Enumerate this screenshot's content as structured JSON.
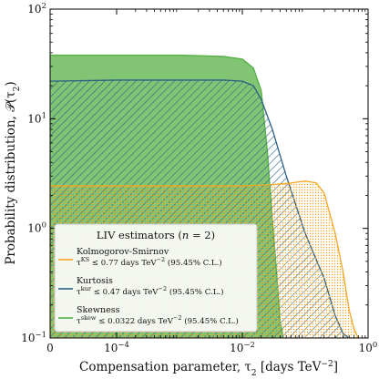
{
  "chart_data": {
    "type": "area",
    "xlabel": "Compensation parameter, τ",
    "xlabel_sub": "2",
    "xlabel_unit": " [days TeV",
    "xlabel_unit_sup": "−2",
    "xlabel_unit_end": "]",
    "ylabel": "Probability distribution, 𝒫(τ",
    "ylabel_sub": "2",
    "ylabel_end": ")",
    "x_scale": "symlog",
    "x_ticks": [
      {
        "value": 0,
        "label": "0",
        "sup": ""
      },
      {
        "value": 0.0001,
        "label": "10",
        "sup": "−4"
      },
      {
        "value": 0.01,
        "label": "10",
        "sup": "−2"
      },
      {
        "value": 1,
        "label": "10",
        "sup": "0"
      }
    ],
    "y_scale": "log",
    "ylim": [
      0.1,
      100
    ],
    "y_ticks": [
      {
        "value": 0.1,
        "label": "10",
        "sup": "−1"
      },
      {
        "value": 1,
        "label": "10",
        "sup": "0"
      },
      {
        "value": 10,
        "label": "10",
        "sup": "1"
      },
      {
        "value": 100,
        "label": "10",
        "sup": "2"
      }
    ],
    "legend": {
      "title": "LIV estimators (",
      "title_var": "n",
      "title_end": " = 2)",
      "placement": "lower-left"
    },
    "series": [
      {
        "name": "Kolmogorov-Smirnov",
        "color": "#f5a623",
        "fill": "dotted-hatch",
        "label_tau": "τ",
        "label_sup": "KS",
        "label_rest": " ≤ 0.77 days TeV",
        "label_unit_sup": "−2",
        "label_cl": " (95.45% C.L.)",
        "x": [
          0,
          0.0001,
          0.001,
          0.01,
          0.03,
          0.06,
          0.1,
          0.15,
          0.2,
          0.3,
          0.4,
          0.5,
          0.6,
          0.7
        ],
        "y": [
          2.45,
          2.45,
          2.45,
          2.45,
          2.5,
          2.6,
          2.7,
          2.6,
          2.1,
          0.9,
          0.4,
          0.18,
          0.12,
          0.1
        ]
      },
      {
        "name": "Kurtosis",
        "color": "#2b5f85",
        "fill": "diagonal-hatch",
        "label_tau": "τ",
        "label_sup": "kur",
        "label_rest": " ≤ 0.47 days TeV",
        "label_unit_sup": "−2",
        "label_cl": " (95.45% C.L.)",
        "x": [
          0,
          0.0001,
          0.001,
          0.005,
          0.01,
          0.015,
          0.02,
          0.03,
          0.05,
          0.1,
          0.2,
          0.3,
          0.4,
          0.5
        ],
        "y": [
          22,
          22.5,
          22.5,
          22.5,
          22,
          20,
          15,
          8,
          3,
          0.9,
          0.35,
          0.16,
          0.11,
          0.1
        ]
      },
      {
        "name": "Skewness",
        "color": "#55b045",
        "fill": "solid",
        "label_tau": "τ",
        "label_sup": "skew",
        "label_rest": " ≤ 0.0322 days TeV",
        "label_unit_sup": "−2",
        "label_cl": " (95.45% C.L.)",
        "x": [
          0,
          0.0001,
          0.001,
          0.005,
          0.01,
          0.015,
          0.02,
          0.025,
          0.03,
          0.035,
          0.04,
          0.045
        ],
        "y": [
          38,
          38,
          38,
          37,
          35,
          29,
          18,
          5,
          1.2,
          0.4,
          0.14,
          0.1
        ]
      }
    ]
  }
}
